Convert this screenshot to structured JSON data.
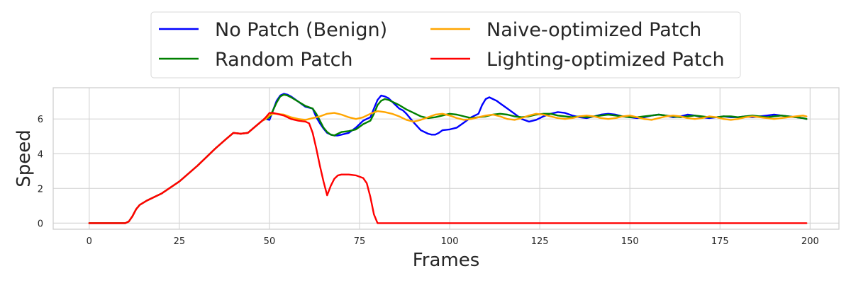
{
  "chart_data": {
    "type": "line",
    "title": "",
    "xlabel": "Frames",
    "ylabel": "Speed",
    "xlim": [
      -10,
      208
    ],
    "ylim": [
      -0.35,
      7.8
    ],
    "xticks": [
      0,
      25,
      50,
      75,
      100,
      125,
      150,
      175,
      200
    ],
    "yticks": [
      0,
      2,
      4,
      6
    ],
    "grid": true,
    "legend": {
      "placement": "top-center, outside plot",
      "columns": 2
    },
    "colors": {
      "No Patch (Benign)": "#0000ff",
      "Random Patch": "#008000",
      "Naive-optimized Patch": "#ffa500",
      "Lighting-optimized Patch": "#ff0000",
      "grid": "#d6d6d6",
      "frame": "#cccccc"
    },
    "series": [
      {
        "name": "No Patch (Benign)",
        "x": [
          0,
          10,
          11,
          12,
          13,
          14,
          16,
          20,
          25,
          30,
          35,
          38,
          40,
          42,
          44,
          46,
          48,
          49,
          50,
          51,
          52,
          53,
          54,
          55,
          56,
          58,
          60,
          62,
          63,
          64,
          65,
          66,
          67,
          68,
          69,
          70,
          72,
          74,
          76,
          78,
          79,
          80,
          81,
          82,
          83,
          84,
          85,
          86,
          87,
          88,
          90,
          92,
          94,
          95,
          96,
          97,
          98,
          100,
          102,
          104,
          106,
          108,
          109,
          110,
          111,
          112,
          113,
          114,
          116,
          118,
          120,
          122,
          124,
          126,
          128,
          130,
          132,
          134,
          136,
          138,
          140,
          142,
          144,
          146,
          148,
          150,
          152,
          154,
          156,
          158,
          160,
          162,
          164,
          166,
          168,
          170,
          172,
          174,
          176,
          178,
          180,
          182,
          184,
          186,
          188,
          190,
          192,
          194,
          196,
          198,
          199
        ],
        "y": [
          0,
          0,
          0.1,
          0.4,
          0.8,
          1.05,
          1.3,
          1.7,
          2.4,
          3.3,
          4.3,
          4.85,
          5.2,
          5.15,
          5.2,
          5.55,
          5.9,
          6.0,
          5.95,
          6.5,
          7.05,
          7.35,
          7.45,
          7.4,
          7.3,
          7.0,
          6.7,
          6.6,
          6.1,
          5.75,
          5.45,
          5.2,
          5.1,
          5.05,
          5.05,
          5.1,
          5.2,
          5.5,
          5.9,
          6.1,
          6.6,
          7.1,
          7.35,
          7.3,
          7.2,
          7.0,
          6.8,
          6.6,
          6.5,
          6.3,
          5.8,
          5.35,
          5.15,
          5.1,
          5.1,
          5.2,
          5.35,
          5.4,
          5.5,
          5.8,
          6.1,
          6.3,
          6.8,
          7.15,
          7.25,
          7.15,
          7.05,
          6.9,
          6.6,
          6.3,
          6.0,
          5.85,
          5.95,
          6.15,
          6.3,
          6.4,
          6.35,
          6.2,
          6.1,
          6.05,
          6.15,
          6.25,
          6.3,
          6.25,
          6.15,
          6.1,
          6.05,
          6.1,
          6.2,
          6.25,
          6.2,
          6.1,
          6.15,
          6.25,
          6.2,
          6.1,
          6.05,
          6.1,
          6.15,
          6.1,
          6.1,
          6.15,
          6.1,
          6.15,
          6.2,
          6.25,
          6.2,
          6.15,
          6.1,
          6.05,
          6.0
        ]
      },
      {
        "name": "Random Patch",
        "x": [
          0,
          10,
          11,
          12,
          13,
          14,
          16,
          20,
          25,
          30,
          35,
          38,
          40,
          42,
          44,
          46,
          48,
          49,
          50,
          51,
          52,
          53,
          54,
          55,
          56,
          58,
          60,
          62,
          63,
          64,
          65,
          66,
          67,
          68,
          69,
          70,
          72,
          74,
          76,
          78,
          79,
          80,
          81,
          82,
          83,
          84,
          86,
          88,
          90,
          92,
          94,
          96,
          98,
          100,
          102,
          104,
          106,
          108,
          110,
          112,
          114,
          116,
          118,
          120,
          122,
          124,
          126,
          128,
          130,
          132,
          134,
          136,
          138,
          140,
          142,
          144,
          146,
          148,
          150,
          152,
          154,
          156,
          158,
          160,
          162,
          164,
          166,
          168,
          170,
          172,
          174,
          176,
          178,
          180,
          182,
          184,
          186,
          188,
          190,
          192,
          194,
          196,
          198,
          199
        ],
        "y": [
          0,
          0,
          0.1,
          0.4,
          0.8,
          1.05,
          1.3,
          1.7,
          2.4,
          3.3,
          4.3,
          4.85,
          5.2,
          5.15,
          5.2,
          5.55,
          5.9,
          6.0,
          6.1,
          6.5,
          6.95,
          7.3,
          7.4,
          7.35,
          7.25,
          7.0,
          6.75,
          6.6,
          6.3,
          5.9,
          5.5,
          5.25,
          5.1,
          5.05,
          5.15,
          5.25,
          5.3,
          5.4,
          5.7,
          5.9,
          6.3,
          6.8,
          7.05,
          7.15,
          7.1,
          7.0,
          6.8,
          6.55,
          6.35,
          6.15,
          6.05,
          6.1,
          6.2,
          6.3,
          6.25,
          6.15,
          6.05,
          6.1,
          6.15,
          6.25,
          6.3,
          6.25,
          6.15,
          6.1,
          6.15,
          6.25,
          6.3,
          6.3,
          6.2,
          6.15,
          6.1,
          6.15,
          6.1,
          6.15,
          6.2,
          6.25,
          6.2,
          6.15,
          6.1,
          6.1,
          6.15,
          6.2,
          6.25,
          6.2,
          6.15,
          6.1,
          6.15,
          6.2,
          6.15,
          6.1,
          6.1,
          6.15,
          6.15,
          6.1,
          6.15,
          6.2,
          6.15,
          6.1,
          6.15,
          6.2,
          6.15,
          6.1,
          6.05,
          6.0
        ]
      },
      {
        "name": "Naive-optimized Patch",
        "x": [
          0,
          10,
          11,
          12,
          13,
          14,
          16,
          20,
          25,
          30,
          35,
          38,
          40,
          42,
          44,
          46,
          48,
          49,
          50,
          51,
          52,
          54,
          56,
          58,
          60,
          62,
          64,
          66,
          68,
          70,
          72,
          74,
          76,
          78,
          80,
          82,
          84,
          86,
          88,
          90,
          92,
          94,
          96,
          98,
          100,
          102,
          104,
          106,
          108,
          110,
          112,
          114,
          116,
          118,
          120,
          122,
          124,
          126,
          128,
          130,
          132,
          134,
          136,
          138,
          140,
          142,
          144,
          146,
          148,
          150,
          152,
          154,
          156,
          158,
          160,
          162,
          164,
          166,
          168,
          170,
          172,
          174,
          176,
          178,
          180,
          182,
          184,
          186,
          188,
          190,
          192,
          194,
          196,
          198,
          199
        ],
        "y": [
          0,
          0,
          0.1,
          0.4,
          0.8,
          1.05,
          1.3,
          1.7,
          2.4,
          3.3,
          4.3,
          4.85,
          5.2,
          5.15,
          5.2,
          5.55,
          5.9,
          6.0,
          6.2,
          6.3,
          6.3,
          6.25,
          6.1,
          6.0,
          5.95,
          6.05,
          6.15,
          6.3,
          6.35,
          6.25,
          6.1,
          6.0,
          6.1,
          6.3,
          6.45,
          6.4,
          6.3,
          6.15,
          5.95,
          5.85,
          5.95,
          6.1,
          6.25,
          6.3,
          6.2,
          6.05,
          5.95,
          6.0,
          6.1,
          6.2,
          6.25,
          6.15,
          6.0,
          5.95,
          6.05,
          6.2,
          6.3,
          6.25,
          6.15,
          6.05,
          6.0,
          6.05,
          6.15,
          6.2,
          6.15,
          6.05,
          6.0,
          6.05,
          6.15,
          6.2,
          6.1,
          6.0,
          5.95,
          6.05,
          6.15,
          6.2,
          6.15,
          6.05,
          6.0,
          6.05,
          6.15,
          6.1,
          6.0,
          5.95,
          6.0,
          6.1,
          6.15,
          6.1,
          6.05,
          6.0,
          6.05,
          6.1,
          6.15,
          6.2,
          6.15
        ]
      },
      {
        "name": "Lighting-optimized Patch",
        "x": [
          0,
          10,
          11,
          12,
          13,
          14,
          16,
          20,
          25,
          30,
          35,
          38,
          40,
          42,
          44,
          46,
          48,
          49,
          50,
          51,
          52,
          54,
          56,
          58,
          60,
          61,
          62,
          63,
          64,
          65,
          66,
          67,
          68,
          69,
          70,
          72,
          74,
          76,
          77,
          78,
          79,
          80,
          85,
          100,
          125,
          150,
          175,
          199
        ],
        "y": [
          0,
          0,
          0.1,
          0.4,
          0.8,
          1.05,
          1.3,
          1.7,
          2.4,
          3.3,
          4.3,
          4.85,
          5.2,
          5.15,
          5.2,
          5.55,
          5.9,
          6.1,
          6.35,
          6.35,
          6.3,
          6.2,
          6.0,
          5.9,
          5.85,
          5.75,
          5.2,
          4.3,
          3.3,
          2.4,
          1.6,
          2.15,
          2.55,
          2.75,
          2.8,
          2.8,
          2.75,
          2.6,
          2.3,
          1.5,
          0.5,
          0,
          0,
          0,
          0,
          0,
          0,
          0
        ]
      }
    ]
  }
}
